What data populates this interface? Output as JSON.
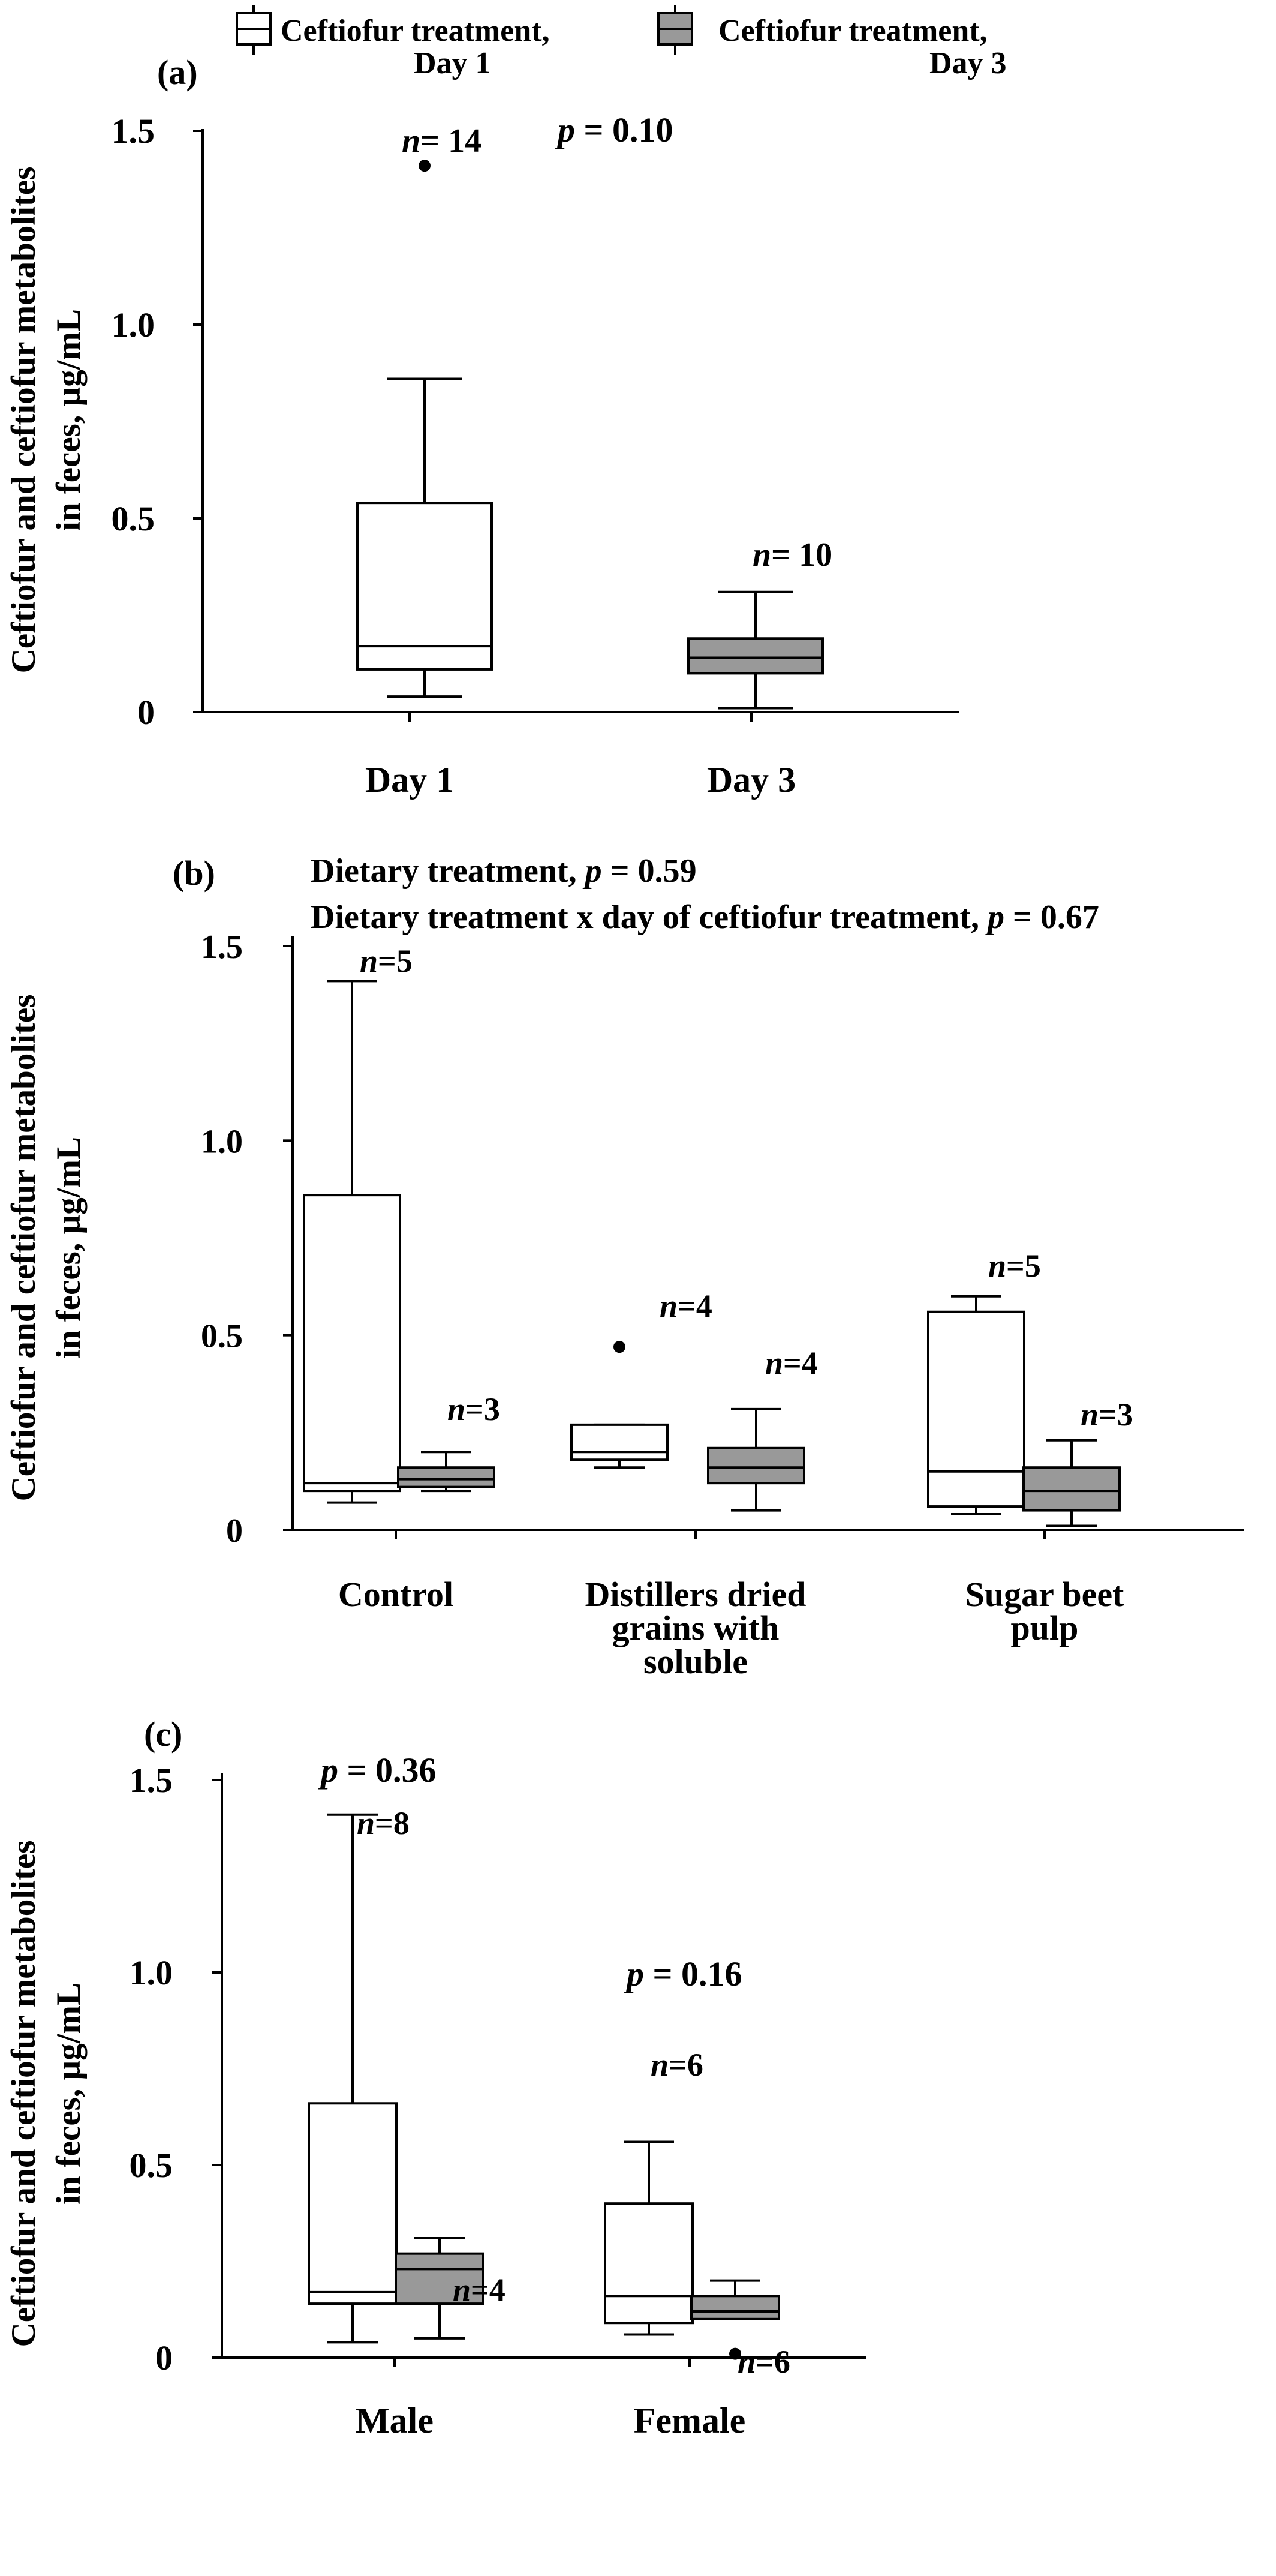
{
  "legend": {
    "items": [
      {
        "label_line1": "Ceftiofur treatment,",
        "label_line2": "Day 1",
        "color": "#ffffff"
      },
      {
        "label_line1": "Ceftiofur treatment,",
        "label_line2": "Day 3",
        "color": "#999999"
      }
    ]
  },
  "chart_data": [
    {
      "type": "box",
      "panel_label": "(a)",
      "ylabel_line1": "Ceftiofur and ceftiofur metabolites",
      "ylabel_line2": "in feces, µg/mL",
      "ylim": [
        0,
        1.5
      ],
      "yticks": [
        0,
        0.5,
        1.0,
        1.5
      ],
      "ytick_labels": [
        "0",
        "0.5",
        "1.0",
        "1.5"
      ],
      "categories": [
        "Day 1",
        "Day 3"
      ],
      "pvalue_texts": [
        {
          "var": "p",
          "rest": " = 0.10"
        }
      ],
      "boxes": [
        {
          "category": "Day 1",
          "series": "Day 1",
          "whisker_low": 0.04,
          "q1": 0.11,
          "median": 0.17,
          "q3": 0.54,
          "whisker_high": 0.86,
          "outliers": [
            1.41
          ],
          "n_var": "n",
          "n_rest": "= 14"
        },
        {
          "category": "Day 3",
          "series": "Day 3",
          "whisker_low": 0.01,
          "q1": 0.1,
          "median": 0.14,
          "q3": 0.19,
          "whisker_high": 0.31,
          "outliers": [],
          "n_var": "n",
          "n_rest": "= 10"
        }
      ]
    },
    {
      "type": "box",
      "panel_label": "(b)",
      "ylabel_line1": "Ceftiofur and ceftiofur metabolites",
      "ylabel_line2": "in feces, µg/mL",
      "ylim": [
        0,
        1.5
      ],
      "yticks": [
        0,
        0.5,
        1.0,
        1.5
      ],
      "ytick_labels": [
        "0",
        "0.5",
        "1.0",
        "1.5"
      ],
      "categories": [
        "Control",
        "Distillers dried grains with soluble",
        "Sugar beet pulp"
      ],
      "category_lines": [
        [
          "Control"
        ],
        [
          "Distillers dried",
          "grains with",
          "soluble"
        ],
        [
          "Sugar beet",
          "pulp"
        ]
      ],
      "pvalue_texts": [
        {
          "prefix": "Dietary treatment,  ",
          "var": "p",
          "rest": " = 0.59"
        },
        {
          "prefix": "Dietary treatment x day of ceftiofur treatment, ",
          "var": "p",
          "rest": " = 0.67"
        }
      ],
      "boxes": [
        {
          "category": "Control",
          "series": "Day 1",
          "whisker_low": 0.07,
          "q1": 0.1,
          "median": 0.12,
          "q3": 0.86,
          "whisker_high": 1.41,
          "outliers": [],
          "n_var": "n",
          "n_rest": "=5"
        },
        {
          "category": "Control",
          "series": "Day 3",
          "whisker_low": 0.1,
          "q1": 0.11,
          "median": 0.13,
          "q3": 0.16,
          "whisker_high": 0.2,
          "outliers": [],
          "n_var": "n",
          "n_rest": "=3"
        },
        {
          "category": "Distillers dried grains with soluble",
          "series": "Day 1",
          "whisker_low": 0.16,
          "q1": 0.18,
          "median": 0.2,
          "q3": 0.27,
          "whisker_high": 0.27,
          "outliers": [
            0.47
          ],
          "n_var": "n",
          "n_rest": "=4"
        },
        {
          "category": "Distillers dried grains with soluble",
          "series": "Day 3",
          "whisker_low": 0.05,
          "q1": 0.12,
          "median": 0.16,
          "q3": 0.21,
          "whisker_high": 0.31,
          "outliers": [],
          "n_var": "n",
          "n_rest": "=4"
        },
        {
          "category": "Sugar beet pulp",
          "series": "Day 1",
          "whisker_low": 0.04,
          "q1": 0.06,
          "median": 0.15,
          "q3": 0.56,
          "whisker_high": 0.6,
          "outliers": [],
          "n_var": "n",
          "n_rest": "=5"
        },
        {
          "category": "Sugar beet pulp",
          "series": "Day 3",
          "whisker_low": 0.01,
          "q1": 0.05,
          "median": 0.1,
          "q3": 0.16,
          "whisker_high": 0.23,
          "outliers": [],
          "n_var": "n",
          "n_rest": "=3"
        }
      ]
    },
    {
      "type": "box",
      "panel_label": "(c)",
      "ylabel_line1": "Ceftiofur and ceftiofur metabolites",
      "ylabel_line2": "in feces, µg/mL",
      "ylim": [
        0,
        1.5
      ],
      "yticks": [
        0,
        0.5,
        1.0,
        1.5
      ],
      "ytick_labels": [
        "0",
        "0.5",
        "1.0",
        "1.5"
      ],
      "categories": [
        "Male",
        "Female"
      ],
      "pvalue_texts": [
        {
          "var": "p",
          "rest": " = 0.36",
          "category": "Male"
        },
        {
          "var": "p",
          "rest": " = 0.16",
          "category": "Female"
        }
      ],
      "boxes": [
        {
          "category": "Male",
          "series": "Day 1",
          "whisker_low": 0.04,
          "q1": 0.14,
          "median": 0.17,
          "q3": 0.66,
          "whisker_high": 1.41,
          "outliers": [],
          "n_var": "n",
          "n_rest": "=8"
        },
        {
          "category": "Male",
          "series": "Day 3",
          "whisker_low": 0.05,
          "q1": 0.14,
          "median": 0.23,
          "q3": 0.27,
          "whisker_high": 0.31,
          "outliers": [],
          "n_var": "n",
          "n_rest": "=4"
        },
        {
          "category": "Female",
          "series": "Day 1",
          "whisker_low": 0.06,
          "q1": 0.09,
          "median": 0.16,
          "q3": 0.4,
          "whisker_high": 0.56,
          "outliers": [],
          "n_var": "n",
          "n_rest": "=6"
        },
        {
          "category": "Female",
          "series": "Day 3",
          "whisker_low": 0.1,
          "q1": 0.1,
          "median": 0.12,
          "q3": 0.16,
          "whisker_high": 0.2,
          "outliers": [
            0.01
          ],
          "n_var": "n",
          "n_rest": "=6"
        }
      ]
    }
  ]
}
